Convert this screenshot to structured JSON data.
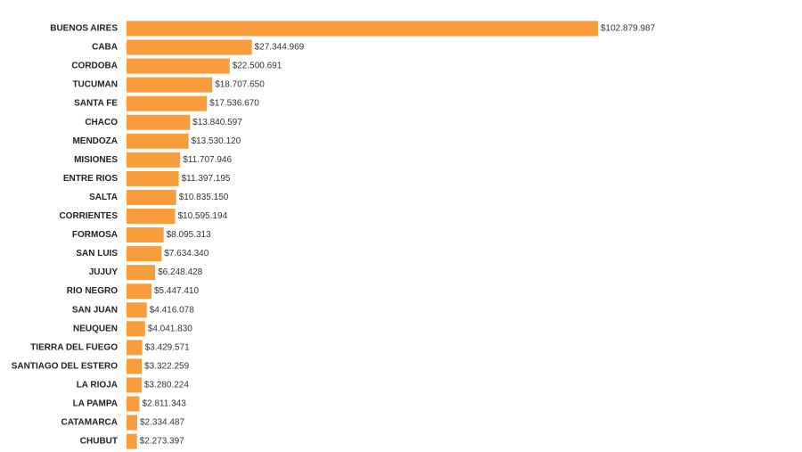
{
  "chart_data": {
    "type": "bar",
    "orientation": "horizontal",
    "categories": [
      "BUENOS AIRES",
      "CABA",
      "CORDOBA",
      "TUCUMAN",
      "SANTA FE",
      "CHACO",
      "MENDOZA",
      "MISIONES",
      "ENTRE RIOS",
      "SALTA",
      "CORRIENTES",
      "FORMOSA",
      "SAN LUIS",
      "JUJUY",
      "RIO NEGRO",
      "SAN JUAN",
      "NEUQUEN",
      "TIERRA DEL FUEGO",
      "SANTIAGO DEL ESTERO",
      "LA RIOJA",
      "LA PAMPA",
      "CATAMARCA",
      "CHUBUT"
    ],
    "values": [
      102879987,
      27344969,
      22500691,
      18707650,
      17536670,
      13840597,
      13530120,
      11707946,
      11397195,
      10835150,
      10595194,
      8095313,
      7634340,
      6248428,
      5447410,
      4416078,
      4041830,
      3429571,
      3322259,
      3280224,
      2811343,
      2334487,
      2273397
    ],
    "value_labels": [
      "$102.879.987",
      "$27.344.969",
      "$22.500.691",
      "$18.707.650",
      "$17.536.670",
      "$13.840.597",
      "$13.530.120",
      "$11.707.946",
      "$11.397.195",
      "$10.835.150",
      "$10.595.194",
      "$8.095.313",
      "$7.634.340",
      "$6.248.428",
      "$5.447.410",
      "$4.416.078",
      "$4.041.830",
      "$3.429.571",
      "$3.322.259",
      "$3.280.224",
      "$2.811.343",
      "$2.334.487",
      "$2.273.397"
    ],
    "title": "",
    "xlabel": "",
    "ylabel": "",
    "xlim": [
      0,
      102879987
    ],
    "grid": false,
    "legend": "none",
    "bar_color": "#f89c3c"
  }
}
